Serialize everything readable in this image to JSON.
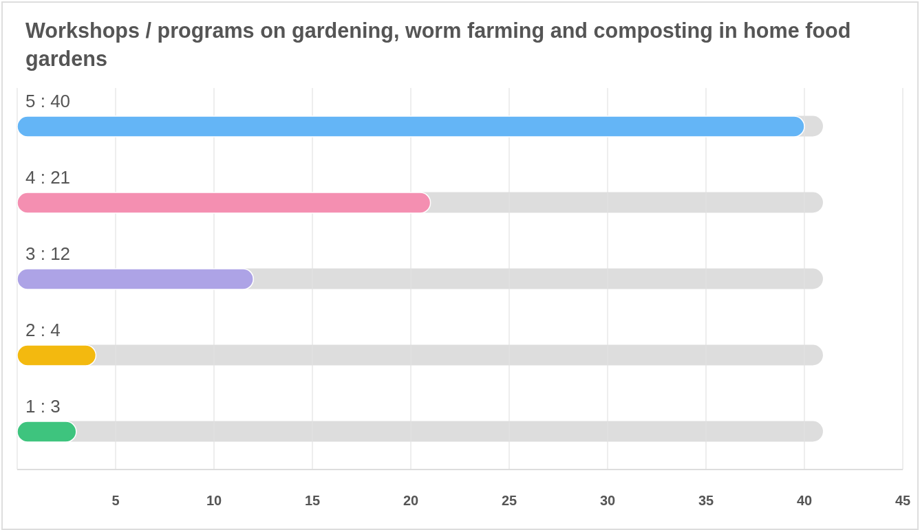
{
  "chart_data": {
    "type": "bar",
    "orientation": "horizontal",
    "title": "Workshops / programs on gardening, worm farming and composting in home food gardens",
    "categories": [
      "5 : 40",
      "4 : 21",
      "3 : 12",
      "2 : 4",
      "1 : 3"
    ],
    "values": [
      40,
      21,
      12,
      4,
      3
    ],
    "colors": [
      "#64b5f6",
      "#f48fb1",
      "#ada3e6",
      "#f3b90f",
      "#3ec47e"
    ],
    "xlim": [
      0,
      45
    ],
    "xticks": [
      {
        "value": 0,
        "label": null
      },
      5,
      10,
      15,
      20,
      25,
      30,
      35,
      40,
      45
    ],
    "grid": "x"
  }
}
